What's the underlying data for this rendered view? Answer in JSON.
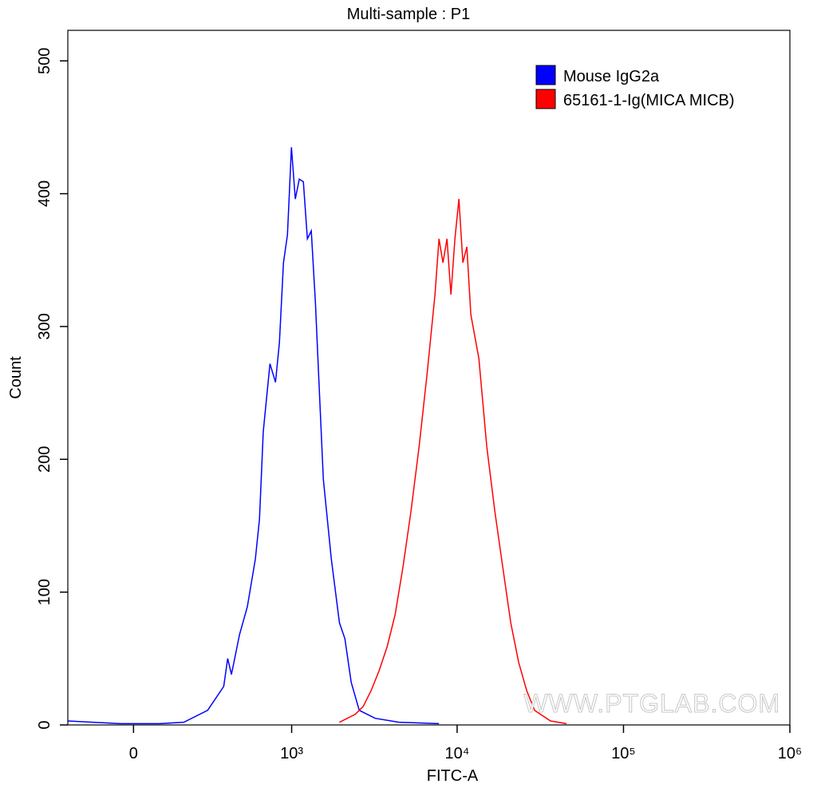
{
  "chart_data": {
    "type": "histogram-line",
    "title": "Multi-sample : P1",
    "x_label": "FITC-A",
    "y_label": "Count",
    "xscale": "biexponential",
    "xlim": [
      -236,
      1000000
    ],
    "xticks": [
      0,
      {
        "value": 1000,
        "label": "10³"
      },
      {
        "value": 10000,
        "label": "10⁴"
      },
      {
        "value": 100000,
        "label": "10⁵"
      },
      {
        "value": 1000000,
        "label": "10⁶"
      }
    ],
    "ylim": [
      0,
      523
    ],
    "yticks": [
      0,
      100,
      200,
      300,
      400,
      500
    ],
    "legend": "top-right",
    "watermark": "WWW.PTGLAB.COM",
    "series": [
      {
        "name": "Mouse IgG2a",
        "color": "#0000ff",
        "x": [
          -236,
          -43,
          84,
          171,
          276,
          363,
          387,
          411,
          466,
          525,
          592,
          629,
          665,
          733,
          794,
          840,
          890,
          942,
          997,
          1053,
          1114,
          1180,
          1249,
          1319,
          1398,
          1478,
          1562,
          1746,
          1955,
          2109,
          2304,
          2576,
          2878,
          3212,
          4470,
          7780
        ],
        "values": [
          3,
          1,
          1,
          2,
          11,
          29,
          50,
          38,
          68,
          89,
          125,
          155,
          221,
          272,
          258,
          288,
          348,
          369,
          435,
          396,
          411,
          409,
          366,
          372,
          318,
          251,
          185,
          125,
          77,
          65,
          32,
          11,
          8,
          5,
          2,
          1
        ]
      },
      {
        "name": "65161-1-Ig(MICA MICB)",
        "color": "#ff0000",
        "x": [
          1955,
          2438,
          2724,
          3042,
          3398,
          3795,
          4236,
          4726,
          5280,
          5900,
          6594,
          7360,
          7780,
          8220,
          8690,
          9180,
          9700,
          10250,
          10830,
          11440,
          12090,
          13510,
          15090,
          16850,
          18800,
          21000,
          23450,
          26170,
          29220,
          36400,
          45400
        ],
        "values": [
          2,
          8,
          14,
          26,
          41,
          59,
          83,
          119,
          161,
          209,
          264,
          324,
          366,
          348,
          366,
          324,
          366,
          396,
          348,
          360,
          309,
          276,
          209,
          161,
          119,
          77,
          47,
          26,
          11,
          3,
          1
        ]
      }
    ]
  }
}
